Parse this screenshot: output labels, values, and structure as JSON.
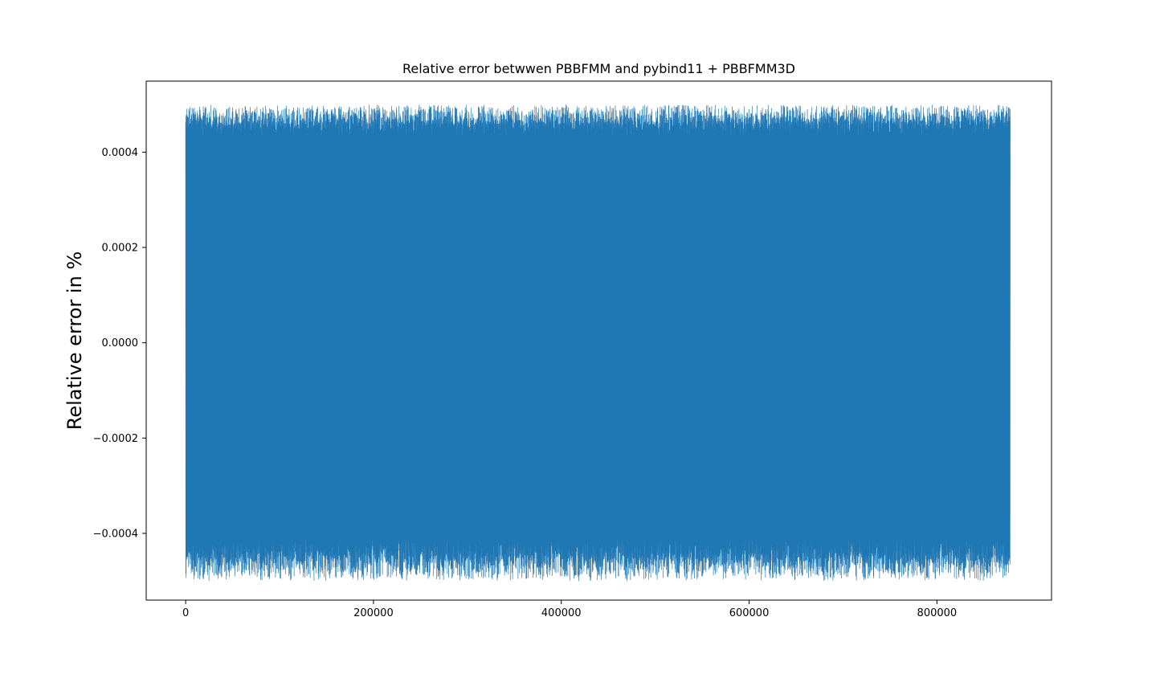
{
  "chart_data": {
    "type": "line",
    "title": "Relative error betwwen PBBFMM and pybind11 + PBBFMM3D",
    "xlabel": "",
    "ylabel": "Relative error in %",
    "xlim": [
      -42000,
      922000
    ],
    "ylim": [
      -0.00054,
      0.000549
    ],
    "x_ticks": [
      0,
      200000,
      400000,
      600000,
      800000
    ],
    "x_tick_labels": [
      "0",
      "200000",
      "400000",
      "600000",
      "800000"
    ],
    "y_ticks": [
      -0.0004,
      -0.0002,
      0.0,
      0.0002,
      0.0004
    ],
    "y_tick_labels": [
      "−0.0004",
      "−0.0002",
      "0.0000",
      "0.0002",
      "0.0004"
    ],
    "grid": false,
    "legend": "none",
    "series": [
      {
        "color": "#1f77b4",
        "x_range": [
          0,
          878000
        ],
        "amplitude_band": {
          "upper_min": 0.00041,
          "upper_max": 0.0005,
          "lower_min": -0.0005,
          "lower_max": -0.00038
        },
        "description": "dense oscillating signal filling the band between about -0.0005 and 0.0005"
      }
    ]
  }
}
